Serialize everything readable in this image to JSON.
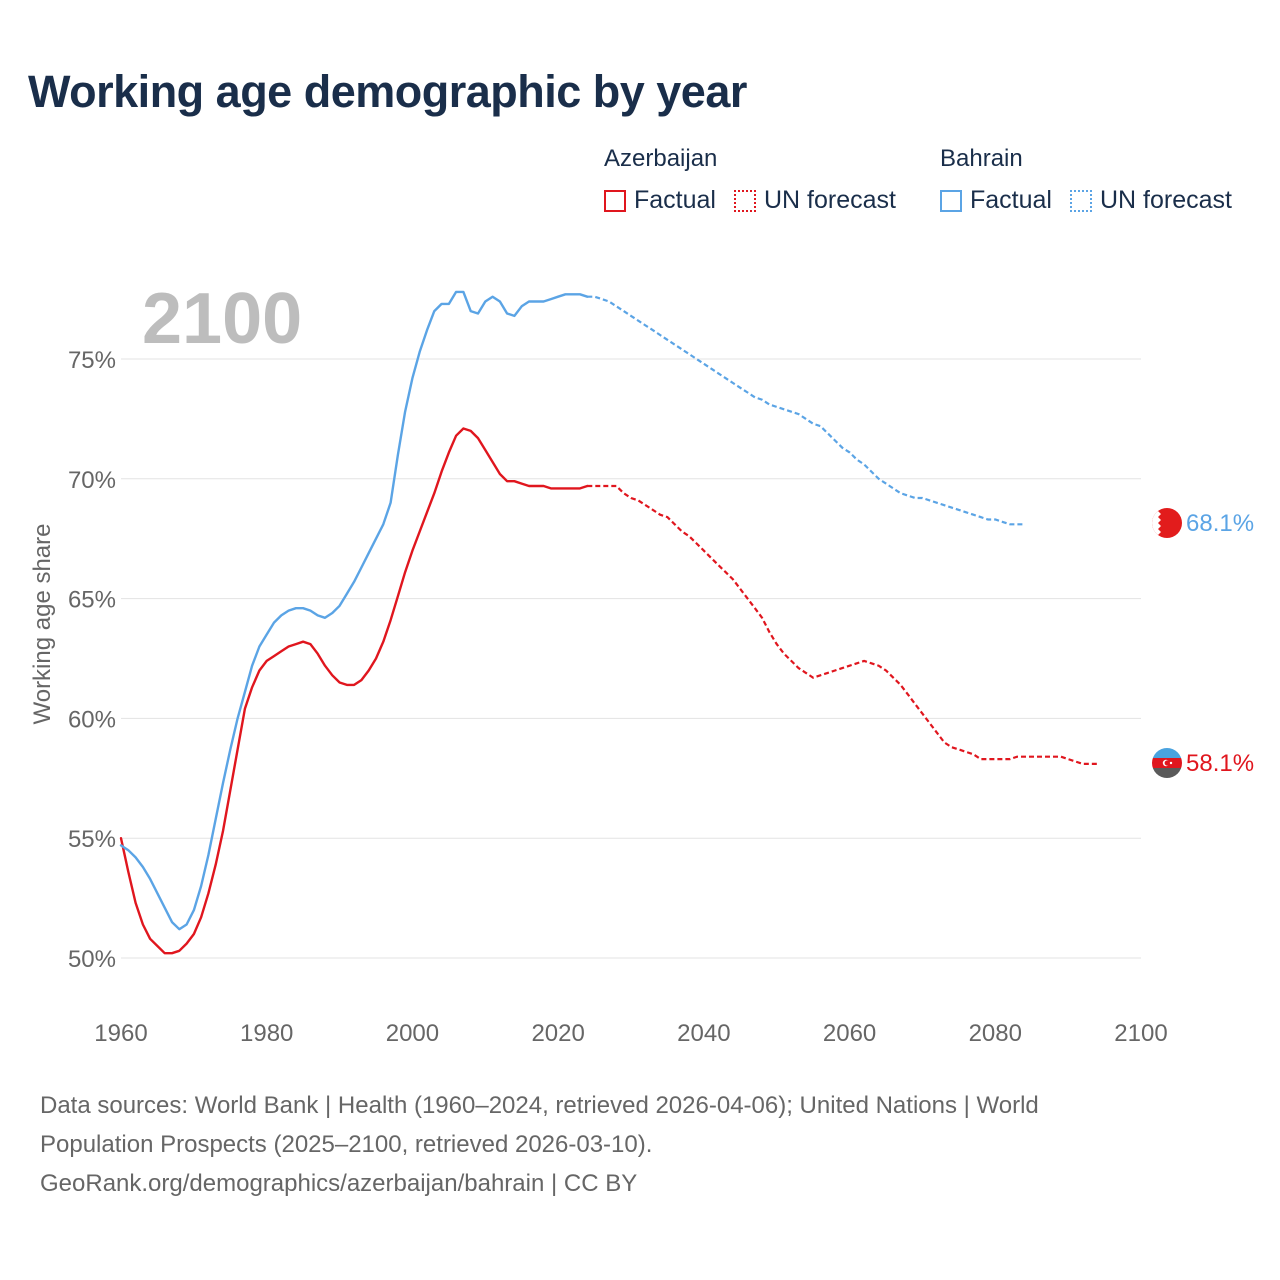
{
  "title": "Working age demographic by year",
  "legend": {
    "groups": [
      {
        "name": "Azerbaijan",
        "factual_label": "Factual",
        "forecast_label": "UN forecast",
        "color": "#e0161e"
      },
      {
        "name": "Bahrain",
        "factual_label": "Factual",
        "forecast_label": "UN forecast",
        "color": "#5ba4e5"
      }
    ]
  },
  "chart_data": {
    "type": "line",
    "title": "Working age demographic by year",
    "year_label": "2100",
    "xlabel": "",
    "ylabel": "Working age share",
    "xlim": [
      1960,
      2100
    ],
    "ylim": [
      50,
      77
    ],
    "x_ticks": [
      "1960",
      "1980",
      "2000",
      "2020",
      "2040",
      "2060",
      "2080",
      "2100"
    ],
    "y_ticks": [
      {
        "value": 50,
        "label": "50%"
      },
      {
        "value": 55,
        "label": "55%"
      },
      {
        "value": 60,
        "label": "60%"
      },
      {
        "value": 65,
        "label": "65%"
      },
      {
        "value": 70,
        "label": "70%"
      },
      {
        "value": 75,
        "label": "75%"
      }
    ],
    "factual_end_year": 2024,
    "series": [
      {
        "name": "Azerbaijan",
        "color": "#e0161e",
        "end_label": "58.1%",
        "flag": "azerbaijan-flag-icon",
        "points": [
          [
            1960,
            55.0
          ],
          [
            1961,
            53.6
          ],
          [
            1962,
            52.3
          ],
          [
            1963,
            51.4
          ],
          [
            1964,
            50.8
          ],
          [
            1965,
            50.5
          ],
          [
            1966,
            50.2
          ],
          [
            1967,
            50.2
          ],
          [
            1968,
            50.3
          ],
          [
            1969,
            50.6
          ],
          [
            1970,
            51.0
          ],
          [
            1971,
            51.7
          ],
          [
            1972,
            52.7
          ],
          [
            1973,
            53.9
          ],
          [
            1974,
            55.3
          ],
          [
            1975,
            57.0
          ],
          [
            1976,
            58.7
          ],
          [
            1977,
            60.4
          ],
          [
            1978,
            61.3
          ],
          [
            1979,
            62.0
          ],
          [
            1980,
            62.4
          ],
          [
            1981,
            62.6
          ],
          [
            1982,
            62.8
          ],
          [
            1983,
            63.0
          ],
          [
            1984,
            63.1
          ],
          [
            1985,
            63.2
          ],
          [
            1986,
            63.1
          ],
          [
            1987,
            62.7
          ],
          [
            1988,
            62.2
          ],
          [
            1989,
            61.8
          ],
          [
            1990,
            61.5
          ],
          [
            1991,
            61.4
          ],
          [
            1992,
            61.4
          ],
          [
            1993,
            61.6
          ],
          [
            1994,
            62.0
          ],
          [
            1995,
            62.5
          ],
          [
            1996,
            63.2
          ],
          [
            1997,
            64.1
          ],
          [
            1998,
            65.1
          ],
          [
            1999,
            66.1
          ],
          [
            2000,
            67.0
          ],
          [
            2001,
            67.8
          ],
          [
            2002,
            68.6
          ],
          [
            2003,
            69.4
          ],
          [
            2004,
            70.3
          ],
          [
            2005,
            71.1
          ],
          [
            2006,
            71.8
          ],
          [
            2007,
            72.1
          ],
          [
            2008,
            72.0
          ],
          [
            2009,
            71.7
          ],
          [
            2010,
            71.2
          ],
          [
            2011,
            70.7
          ],
          [
            2012,
            70.2
          ],
          [
            2013,
            69.9
          ],
          [
            2014,
            69.9
          ],
          [
            2015,
            69.8
          ],
          [
            2016,
            69.7
          ],
          [
            2017,
            69.7
          ],
          [
            2018,
            69.7
          ],
          [
            2019,
            69.6
          ],
          [
            2020,
            69.6
          ],
          [
            2021,
            69.6
          ],
          [
            2022,
            69.6
          ],
          [
            2023,
            69.6
          ],
          [
            2024,
            69.7
          ],
          [
            2025,
            69.7
          ],
          [
            2026,
            69.7
          ],
          [
            2027,
            69.7
          ],
          [
            2028,
            69.7
          ],
          [
            2029,
            69.4
          ],
          [
            2030,
            69.2
          ],
          [
            2031,
            69.1
          ],
          [
            2032,
            68.9
          ],
          [
            2033,
            68.7
          ],
          [
            2034,
            68.5
          ],
          [
            2035,
            68.4
          ],
          [
            2036,
            68.1
          ],
          [
            2037,
            67.8
          ],
          [
            2038,
            67.6
          ],
          [
            2039,
            67.3
          ],
          [
            2040,
            67.0
          ],
          [
            2041,
            66.7
          ],
          [
            2042,
            66.4
          ],
          [
            2043,
            66.1
          ],
          [
            2044,
            65.8
          ],
          [
            2045,
            65.4
          ],
          [
            2046,
            65.0
          ],
          [
            2047,
            64.6
          ],
          [
            2048,
            64.2
          ],
          [
            2049,
            63.6
          ],
          [
            2050,
            63.1
          ],
          [
            2051,
            62.7
          ],
          [
            2052,
            62.4
          ],
          [
            2053,
            62.1
          ],
          [
            2054,
            61.9
          ],
          [
            2055,
            61.7
          ],
          [
            2056,
            61.8
          ],
          [
            2057,
            61.9
          ],
          [
            2058,
            62.0
          ],
          [
            2059,
            62.1
          ],
          [
            2060,
            62.2
          ],
          [
            2061,
            62.3
          ],
          [
            2062,
            62.4
          ],
          [
            2063,
            62.3
          ],
          [
            2064,
            62.2
          ],
          [
            2065,
            62.0
          ],
          [
            2066,
            61.7
          ],
          [
            2067,
            61.4
          ],
          [
            2068,
            61.0
          ],
          [
            2069,
            60.6
          ],
          [
            2070,
            60.2
          ],
          [
            2071,
            59.8
          ],
          [
            2072,
            59.4
          ],
          [
            2073,
            59.0
          ],
          [
            2074,
            58.8
          ],
          [
            2075,
            58.7
          ],
          [
            2076,
            58.6
          ],
          [
            2077,
            58.5
          ],
          [
            2078,
            58.3
          ],
          [
            2079,
            58.3
          ],
          [
            2080,
            58.3
          ],
          [
            2081,
            58.3
          ],
          [
            2082,
            58.3
          ],
          [
            2083,
            58.4
          ],
          [
            2084,
            58.4
          ],
          [
            2085,
            58.4
          ],
          [
            2086,
            58.4
          ],
          [
            2087,
            58.4
          ],
          [
            2088,
            58.4
          ],
          [
            2089,
            58.4
          ],
          [
            2090,
            58.3
          ],
          [
            2091,
            58.2
          ],
          [
            2092,
            58.1
          ],
          [
            2093,
            58.1
          ],
          [
            2094,
            58.1
          ]
        ]
      },
      {
        "name": "Bahrain",
        "color": "#5ba4e5",
        "end_label": "68.1%",
        "flag": "bahrain-flag-icon",
        "points": [
          [
            1960,
            54.7
          ],
          [
            1961,
            54.5
          ],
          [
            1962,
            54.2
          ],
          [
            1963,
            53.8
          ],
          [
            1964,
            53.3
          ],
          [
            1965,
            52.7
          ],
          [
            1966,
            52.1
          ],
          [
            1967,
            51.5
          ],
          [
            1968,
            51.2
          ],
          [
            1969,
            51.4
          ],
          [
            1970,
            52.0
          ],
          [
            1971,
            53.0
          ],
          [
            1972,
            54.3
          ],
          [
            1973,
            55.8
          ],
          [
            1974,
            57.3
          ],
          [
            1975,
            58.7
          ],
          [
            1976,
            60.0
          ],
          [
            1977,
            61.1
          ],
          [
            1978,
            62.2
          ],
          [
            1979,
            63.0
          ],
          [
            1980,
            63.5
          ],
          [
            1981,
            64.0
          ],
          [
            1982,
            64.3
          ],
          [
            1983,
            64.5
          ],
          [
            1984,
            64.6
          ],
          [
            1985,
            64.6
          ],
          [
            1986,
            64.5
          ],
          [
            1987,
            64.3
          ],
          [
            1988,
            64.2
          ],
          [
            1989,
            64.4
          ],
          [
            1990,
            64.7
          ],
          [
            1991,
            65.2
          ],
          [
            1992,
            65.7
          ],
          [
            1993,
            66.3
          ],
          [
            1994,
            66.9
          ],
          [
            1995,
            67.5
          ],
          [
            1996,
            68.1
          ],
          [
            1997,
            69.0
          ],
          [
            1998,
            71.0
          ],
          [
            1999,
            72.8
          ],
          [
            2000,
            74.2
          ],
          [
            2001,
            75.3
          ],
          [
            2002,
            76.2
          ],
          [
            2003,
            77.0
          ],
          [
            2004,
            77.3
          ],
          [
            2005,
            77.3
          ],
          [
            2006,
            77.8
          ],
          [
            2007,
            77.8
          ],
          [
            2008,
            77.0
          ],
          [
            2009,
            76.9
          ],
          [
            2010,
            77.4
          ],
          [
            2011,
            77.6
          ],
          [
            2012,
            77.4
          ],
          [
            2013,
            76.9
          ],
          [
            2014,
            76.8
          ],
          [
            2015,
            77.2
          ],
          [
            2016,
            77.4
          ],
          [
            2017,
            77.4
          ],
          [
            2018,
            77.4
          ],
          [
            2019,
            77.5
          ],
          [
            2020,
            77.6
          ],
          [
            2021,
            77.7
          ],
          [
            2022,
            77.7
          ],
          [
            2023,
            77.7
          ],
          [
            2024,
            77.6
          ],
          [
            2025,
            77.6
          ],
          [
            2026,
            77.5
          ],
          [
            2027,
            77.4
          ],
          [
            2028,
            77.2
          ],
          [
            2029,
            77.0
          ],
          [
            2030,
            76.8
          ],
          [
            2031,
            76.6
          ],
          [
            2032,
            76.4
          ],
          [
            2033,
            76.2
          ],
          [
            2034,
            76.0
          ],
          [
            2035,
            75.8
          ],
          [
            2036,
            75.6
          ],
          [
            2037,
            75.4
          ],
          [
            2038,
            75.2
          ],
          [
            2039,
            75.0
          ],
          [
            2040,
            74.8
          ],
          [
            2041,
            74.6
          ],
          [
            2042,
            74.4
          ],
          [
            2043,
            74.2
          ],
          [
            2044,
            74.0
          ],
          [
            2045,
            73.8
          ],
          [
            2046,
            73.6
          ],
          [
            2047,
            73.4
          ],
          [
            2048,
            73.3
          ],
          [
            2049,
            73.1
          ],
          [
            2050,
            73.0
          ],
          [
            2051,
            72.9
          ],
          [
            2052,
            72.8
          ],
          [
            2053,
            72.7
          ],
          [
            2054,
            72.5
          ],
          [
            2055,
            72.3
          ],
          [
            2056,
            72.2
          ],
          [
            2057,
            71.9
          ],
          [
            2058,
            71.6
          ],
          [
            2059,
            71.3
          ],
          [
            2060,
            71.1
          ],
          [
            2061,
            70.8
          ],
          [
            2062,
            70.6
          ],
          [
            2063,
            70.3
          ],
          [
            2064,
            70.0
          ],
          [
            2065,
            69.8
          ],
          [
            2066,
            69.6
          ],
          [
            2067,
            69.4
          ],
          [
            2068,
            69.3
          ],
          [
            2069,
            69.2
          ],
          [
            2070,
            69.2
          ],
          [
            2071,
            69.1
          ],
          [
            2072,
            69.0
          ],
          [
            2073,
            68.9
          ],
          [
            2074,
            68.8
          ],
          [
            2075,
            68.7
          ],
          [
            2076,
            68.6
          ],
          [
            2077,
            68.5
          ],
          [
            2078,
            68.4
          ],
          [
            2079,
            68.3
          ],
          [
            2080,
            68.3
          ],
          [
            2081,
            68.2
          ],
          [
            2082,
            68.1
          ],
          [
            2083,
            68.1
          ],
          [
            2084,
            68.1
          ]
        ]
      }
    ]
  },
  "footer": {
    "line1": "Data sources: World Bank | Health (1960–2024, retrieved 2026-04-06); United Nations | World",
    "line2": "Population Prospects (2025–2100, retrieved 2026-03-10).",
    "line3": "GeoRank.org/demographics/azerbaijan/bahrain | CC BY"
  }
}
